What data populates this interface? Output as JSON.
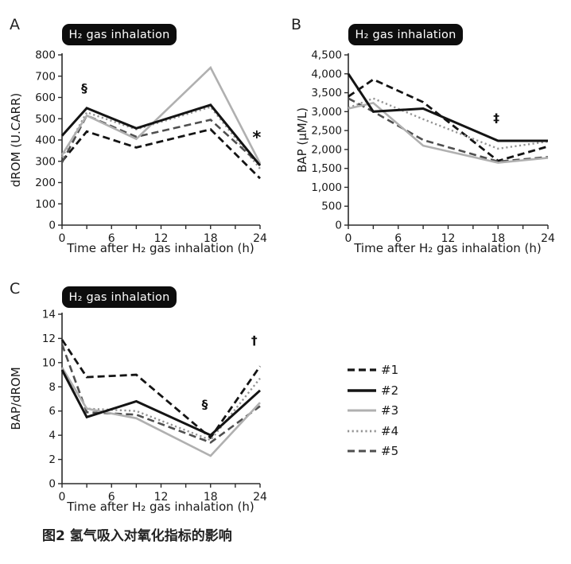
{
  "caption": "图2 氢气吸入对氧化指标的影响",
  "legend": {
    "items": [
      {
        "name": "#1",
        "color": "#141414",
        "style": "dashed",
        "width": 2.8
      },
      {
        "name": "#2",
        "color": "#141414",
        "style": "solid",
        "width": 3.0
      },
      {
        "name": "#3",
        "color": "#b0b0b0",
        "style": "solid",
        "width": 2.6
      },
      {
        "name": "#4",
        "color": "#949494",
        "style": "dotted",
        "width": 2.4
      },
      {
        "name": "#5",
        "color": "#4f4f4f",
        "style": "dashed",
        "width": 2.6
      }
    ]
  },
  "chart_data": [
    {
      "id": "A",
      "type": "line",
      "panel_label": "A",
      "badge": "H₂ gas inhalation",
      "xlabel": "Time after H₂ gas inhalation (h)",
      "ylabel": "dROM (U.CARR)",
      "x": [
        0,
        3,
        9,
        18,
        24
      ],
      "xlim": [
        0,
        24
      ],
      "ylim": [
        0,
        800
      ],
      "ytick_step": 100,
      "xticks_major": [
        0,
        6,
        12,
        18,
        24
      ],
      "xticks_minor": [
        3,
        9,
        15,
        21
      ],
      "grid": false,
      "series": [
        {
          "name": "#1",
          "values": [
            300,
            440,
            365,
            450,
            220
          ]
        },
        {
          "name": "#2",
          "values": [
            420,
            550,
            455,
            565,
            280
          ]
        },
        {
          "name": "#3",
          "values": [
            330,
            515,
            405,
            740,
            290
          ]
        },
        {
          "name": "#4",
          "values": [
            320,
            530,
            450,
            555,
            265
          ]
        },
        {
          "name": "#5",
          "values": [
            295,
            515,
            415,
            495,
            285
          ]
        }
      ],
      "annotations": [
        {
          "text": "§",
          "x": 2.7,
          "y": 625
        },
        {
          "text": "*",
          "x": 23.6,
          "y": 385
        }
      ]
    },
    {
      "id": "B",
      "type": "line",
      "panel_label": "B",
      "badge": "H₂ gas inhalation",
      "xlabel": "Time after H₂ gas inhalation (h)",
      "ylabel": "BAP (μM/L)",
      "x": [
        0,
        3,
        9,
        18,
        24
      ],
      "xlim": [
        0,
        24
      ],
      "ylim": [
        0,
        4500
      ],
      "ytick_step": 500,
      "ytick_format": "comma",
      "xticks_major": [
        0,
        6,
        12,
        18,
        24
      ],
      "xticks_minor": [
        3,
        9,
        15,
        21
      ],
      "grid": false,
      "series": [
        {
          "name": "#1",
          "values": [
            3400,
            3850,
            3250,
            1700,
            2080
          ]
        },
        {
          "name": "#2",
          "values": [
            4000,
            3000,
            3080,
            2230,
            2230
          ]
        },
        {
          "name": "#3",
          "values": [
            3080,
            3230,
            2100,
            1650,
            1780
          ]
        },
        {
          "name": "#4",
          "values": [
            3100,
            3350,
            2800,
            2020,
            2210
          ]
        },
        {
          "name": "#5",
          "values": [
            3350,
            3000,
            2250,
            1680,
            1800
          ]
        }
      ],
      "annotations": [
        {
          "text": "‡",
          "x": 17.8,
          "y": 2720
        }
      ]
    },
    {
      "id": "C",
      "type": "line",
      "panel_label": "C",
      "badge": "H₂ gas inhalation",
      "xlabel": "Time after H₂ gas inhalation (h)",
      "ylabel": "BAP/dROM",
      "x": [
        0,
        3,
        9,
        18,
        24
      ],
      "xlim": [
        0,
        24
      ],
      "ylim": [
        0,
        14
      ],
      "ytick_step": 2,
      "xticks_major": [
        0,
        6,
        12,
        18,
        24
      ],
      "xticks_minor": [
        3,
        9,
        15,
        21
      ],
      "grid": false,
      "series": [
        {
          "name": "#1",
          "values": [
            11.9,
            8.8,
            9.0,
            3.8,
            9.7
          ]
        },
        {
          "name": "#2",
          "values": [
            9.4,
            5.5,
            6.8,
            4.0,
            7.7
          ]
        },
        {
          "name": "#3",
          "values": [
            9.6,
            6.2,
            5.4,
            2.3,
            6.7
          ]
        },
        {
          "name": "#4",
          "values": [
            9.5,
            6.2,
            6.0,
            3.6,
            8.7
          ]
        },
        {
          "name": "#5",
          "values": [
            11.5,
            5.9,
            5.7,
            3.4,
            6.4
          ]
        }
      ],
      "annotations": [
        {
          "text": "§",
          "x": 17.3,
          "y": 6.2
        },
        {
          "text": "†",
          "x": 23.3,
          "y": 11.5
        }
      ]
    }
  ]
}
